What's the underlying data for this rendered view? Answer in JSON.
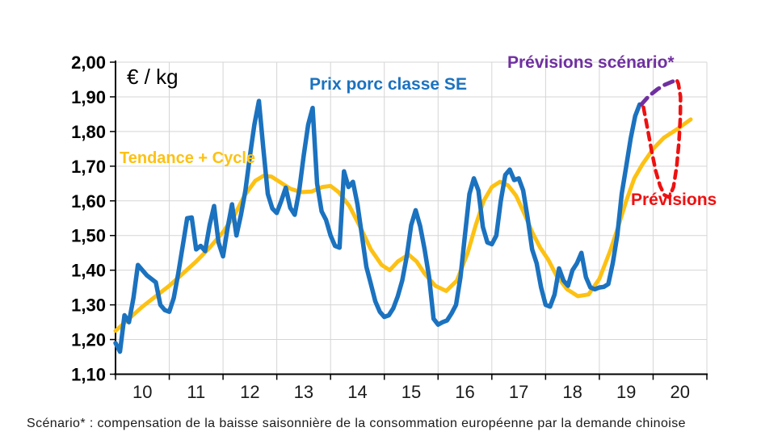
{
  "page": {
    "background": "#FFFFFF"
  },
  "colors": {
    "price_blue": "#1B72BF",
    "trend_yellow": "#FDC113",
    "scenario_purple": "#7030A0",
    "forecast_red": "#EE1111",
    "grid": "#D5D5D5",
    "axis": "#000000",
    "tick_text": "#1A1A1A"
  },
  "annotations": {
    "unit": "€ / kg",
    "trend": "Tendance + Cycle",
    "price": "Prix porc classe SE",
    "scenario": "Prévisions scénario*",
    "forecast": "Prévisions"
  },
  "footer": {
    "text": "Scénario* : compensation de la baisse saisonnière de la consommation européenne par la demande chinoise"
  },
  "chart_data": {
    "type": "line",
    "title": "",
    "ylabel": "€ / kg",
    "ylim": [
      1.1,
      2.0
    ],
    "y_tick_step": 0.1,
    "y_tick_labels": [
      "2,00",
      "1,90",
      "1,80",
      "1,70",
      "1,60",
      "1,50",
      "1,40",
      "1,30",
      "1,20",
      "1,10"
    ],
    "x_tick_labels": [
      "10",
      "11",
      "12",
      "13",
      "14",
      "15",
      "16",
      "17",
      "18",
      "19",
      "20"
    ],
    "x_range_years": [
      2010.0,
      2021.0
    ],
    "grid": true,
    "legend_position": "inline-annotations",
    "series": [
      {
        "name": "Prix porc classe SE",
        "style": "solid",
        "color_key": "price_blue",
        "x_start_year": 2010.0,
        "x_step_years": 0.083333,
        "values": [
          1.19,
          1.165,
          1.27,
          1.25,
          1.32,
          1.415,
          1.4,
          1.385,
          1.375,
          1.365,
          1.3,
          1.285,
          1.28,
          1.32,
          1.39,
          1.47,
          1.55,
          1.552,
          1.46,
          1.47,
          1.455,
          1.53,
          1.585,
          1.48,
          1.44,
          1.52,
          1.59,
          1.5,
          1.56,
          1.63,
          1.73,
          1.82,
          1.888,
          1.75,
          1.62,
          1.578,
          1.565,
          1.6,
          1.638,
          1.58,
          1.56,
          1.63,
          1.73,
          1.82,
          1.868,
          1.65,
          1.57,
          1.545,
          1.5,
          1.47,
          1.465,
          1.685,
          1.64,
          1.655,
          1.59,
          1.5,
          1.41,
          1.36,
          1.31,
          1.28,
          1.265,
          1.27,
          1.29,
          1.325,
          1.37,
          1.44,
          1.53,
          1.573,
          1.527,
          1.46,
          1.38,
          1.26,
          1.243,
          1.25,
          1.255,
          1.275,
          1.3,
          1.38,
          1.5,
          1.62,
          1.665,
          1.63,
          1.525,
          1.48,
          1.475,
          1.5,
          1.6,
          1.675,
          1.69,
          1.66,
          1.665,
          1.63,
          1.55,
          1.46,
          1.42,
          1.35,
          1.3,
          1.295,
          1.33,
          1.405,
          1.37,
          1.355,
          1.4,
          1.42,
          1.45,
          1.38,
          1.35,
          1.345,
          1.35,
          1.352,
          1.36,
          1.42,
          1.5,
          1.62,
          1.7,
          1.78,
          1.845,
          1.878
        ]
      },
      {
        "name": "Tendance + Cycle",
        "style": "solid",
        "color_key": "trend_yellow",
        "points": [
          [
            2010.0,
            1.225
          ],
          [
            2010.25,
            1.26
          ],
          [
            2010.5,
            1.295
          ],
          [
            2010.75,
            1.325
          ],
          [
            2011.0,
            1.355
          ],
          [
            2011.25,
            1.39
          ],
          [
            2011.5,
            1.425
          ],
          [
            2011.75,
            1.465
          ],
          [
            2012.0,
            1.51
          ],
          [
            2012.2,
            1.555
          ],
          [
            2012.4,
            1.615
          ],
          [
            2012.6,
            1.658
          ],
          [
            2012.75,
            1.672
          ],
          [
            2012.9,
            1.67
          ],
          [
            2013.05,
            1.655
          ],
          [
            2013.25,
            1.635
          ],
          [
            2013.45,
            1.625
          ],
          [
            2013.65,
            1.627
          ],
          [
            2013.85,
            1.64
          ],
          [
            2014.0,
            1.643
          ],
          [
            2014.15,
            1.625
          ],
          [
            2014.35,
            1.585
          ],
          [
            2014.55,
            1.525
          ],
          [
            2014.75,
            1.46
          ],
          [
            2014.95,
            1.415
          ],
          [
            2015.1,
            1.4
          ],
          [
            2015.25,
            1.425
          ],
          [
            2015.45,
            1.445
          ],
          [
            2015.6,
            1.425
          ],
          [
            2015.75,
            1.39
          ],
          [
            2015.95,
            1.355
          ],
          [
            2016.15,
            1.34
          ],
          [
            2016.35,
            1.37
          ],
          [
            2016.55,
            1.45
          ],
          [
            2016.7,
            1.53
          ],
          [
            2016.85,
            1.6
          ],
          [
            2017.0,
            1.64
          ],
          [
            2017.15,
            1.655
          ],
          [
            2017.3,
            1.645
          ],
          [
            2017.45,
            1.615
          ],
          [
            2017.6,
            1.565
          ],
          [
            2017.75,
            1.51
          ],
          [
            2017.9,
            1.465
          ],
          [
            2018.05,
            1.43
          ],
          [
            2018.2,
            1.385
          ],
          [
            2018.4,
            1.345
          ],
          [
            2018.6,
            1.325
          ],
          [
            2018.8,
            1.33
          ],
          [
            2019.0,
            1.375
          ],
          [
            2019.2,
            1.455
          ],
          [
            2019.35,
            1.525
          ],
          [
            2019.5,
            1.6
          ],
          [
            2019.65,
            1.665
          ],
          [
            2019.8,
            1.705
          ],
          [
            2020.0,
            1.75
          ],
          [
            2020.2,
            1.782
          ],
          [
            2020.45,
            1.807
          ],
          [
            2020.7,
            1.835
          ]
        ]
      },
      {
        "name": "Prévisions scénario*",
        "style": "dashed",
        "color_key": "scenario_purple",
        "points": [
          [
            2019.78,
            1.878
          ],
          [
            2019.92,
            1.902
          ],
          [
            2020.08,
            1.922
          ],
          [
            2020.22,
            1.935
          ],
          [
            2020.36,
            1.944
          ],
          [
            2020.46,
            1.949
          ]
        ]
      },
      {
        "name": "Prévisions",
        "style": "dashed",
        "color_key": "forecast_red",
        "points": [
          [
            2019.82,
            1.87
          ],
          [
            2019.9,
            1.805
          ],
          [
            2019.98,
            1.738
          ],
          [
            2020.05,
            1.685
          ],
          [
            2020.13,
            1.643
          ],
          [
            2020.21,
            1.617
          ],
          [
            2020.3,
            1.61
          ],
          [
            2020.38,
            1.64
          ],
          [
            2020.44,
            1.7
          ],
          [
            2020.48,
            1.768
          ],
          [
            2020.505,
            1.838
          ],
          [
            2020.51,
            1.9
          ],
          [
            2020.47,
            1.938
          ],
          [
            2020.43,
            1.952
          ]
        ]
      }
    ]
  }
}
